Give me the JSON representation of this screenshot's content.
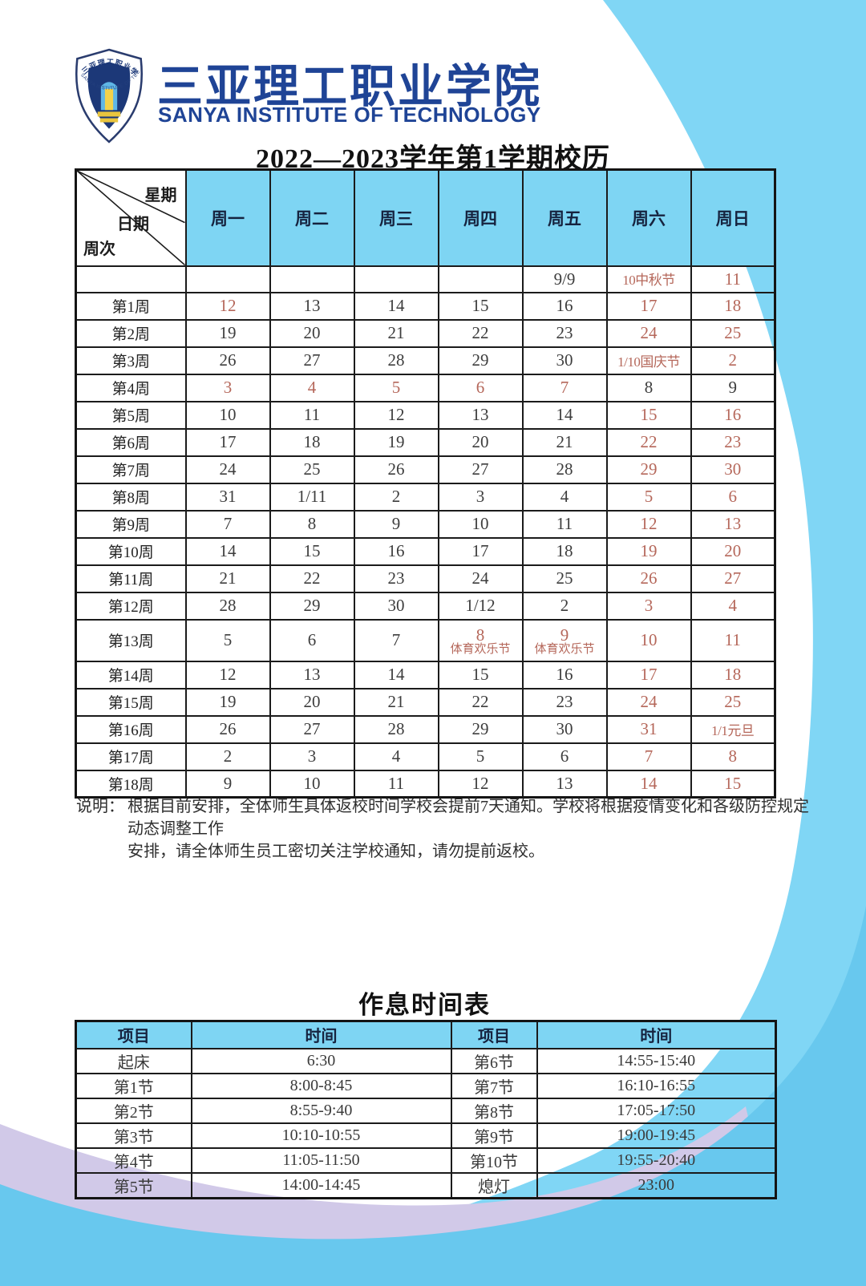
{
  "header": {
    "school_name_zh": "三亚理工职业学院",
    "school_name_en": "SANYA INSTITUTE OF TECHNOLOGY",
    "calendar_title": "2022—2023学年第1学期校历"
  },
  "calendar": {
    "corner": {
      "week_day_label": "星期",
      "date_label": "日期",
      "week_no_label": "周次"
    },
    "day_headers": [
      "周一",
      "周二",
      "周三",
      "周四",
      "周五",
      "周六",
      "周日"
    ],
    "rows": [
      {
        "week": "",
        "blank": true,
        "cells": [
          {
            "t": ""
          },
          {
            "t": ""
          },
          {
            "t": ""
          },
          {
            "t": ""
          },
          {
            "t": "9/9"
          },
          {
            "t": "10中秋节",
            "red": true
          },
          {
            "t": "11",
            "red": true
          }
        ]
      },
      {
        "week": "第1周",
        "cells": [
          {
            "t": "12",
            "red": true
          },
          {
            "t": "13"
          },
          {
            "t": "14"
          },
          {
            "t": "15"
          },
          {
            "t": "16"
          },
          {
            "t": "17",
            "red": true
          },
          {
            "t": "18",
            "red": true
          }
        ]
      },
      {
        "week": "第2周",
        "cells": [
          {
            "t": "19"
          },
          {
            "t": "20"
          },
          {
            "t": "21"
          },
          {
            "t": "22"
          },
          {
            "t": "23"
          },
          {
            "t": "24",
            "red": true
          },
          {
            "t": "25",
            "red": true
          }
        ]
      },
      {
        "week": "第3周",
        "cells": [
          {
            "t": "26"
          },
          {
            "t": "27"
          },
          {
            "t": "28"
          },
          {
            "t": "29"
          },
          {
            "t": "30"
          },
          {
            "t": "1/10国庆节",
            "red": true
          },
          {
            "t": "2",
            "red": true
          }
        ]
      },
      {
        "week": "第4周",
        "cells": [
          {
            "t": "3",
            "red": true
          },
          {
            "t": "4",
            "red": true
          },
          {
            "t": "5",
            "red": true
          },
          {
            "t": "6",
            "red": true
          },
          {
            "t": "7",
            "red": true
          },
          {
            "t": "8"
          },
          {
            "t": "9"
          }
        ]
      },
      {
        "week": "第5周",
        "cells": [
          {
            "t": "10"
          },
          {
            "t": "11"
          },
          {
            "t": "12"
          },
          {
            "t": "13"
          },
          {
            "t": "14"
          },
          {
            "t": "15",
            "red": true
          },
          {
            "t": "16",
            "red": true
          }
        ]
      },
      {
        "week": "第6周",
        "cells": [
          {
            "t": "17"
          },
          {
            "t": "18"
          },
          {
            "t": "19"
          },
          {
            "t": "20"
          },
          {
            "t": "21"
          },
          {
            "t": "22",
            "red": true
          },
          {
            "t": "23",
            "red": true
          }
        ]
      },
      {
        "week": "第7周",
        "cells": [
          {
            "t": "24"
          },
          {
            "t": "25"
          },
          {
            "t": "26"
          },
          {
            "t": "27"
          },
          {
            "t": "28"
          },
          {
            "t": "29",
            "red": true
          },
          {
            "t": "30",
            "red": true
          }
        ]
      },
      {
        "week": "第8周",
        "cells": [
          {
            "t": "31"
          },
          {
            "t": "1/11"
          },
          {
            "t": "2"
          },
          {
            "t": "3"
          },
          {
            "t": "4"
          },
          {
            "t": "5",
            "red": true
          },
          {
            "t": "6",
            "red": true
          }
        ]
      },
      {
        "week": "第9周",
        "cells": [
          {
            "t": "7"
          },
          {
            "t": "8"
          },
          {
            "t": "9"
          },
          {
            "t": "10"
          },
          {
            "t": "11"
          },
          {
            "t": "12",
            "red": true
          },
          {
            "t": "13",
            "red": true
          }
        ]
      },
      {
        "week": "第10周",
        "cells": [
          {
            "t": "14"
          },
          {
            "t": "15"
          },
          {
            "t": "16"
          },
          {
            "t": "17"
          },
          {
            "t": "18"
          },
          {
            "t": "19",
            "red": true
          },
          {
            "t": "20",
            "red": true
          }
        ]
      },
      {
        "week": "第11周",
        "cells": [
          {
            "t": "21"
          },
          {
            "t": "22"
          },
          {
            "t": "23"
          },
          {
            "t": "24"
          },
          {
            "t": "25"
          },
          {
            "t": "26",
            "red": true
          },
          {
            "t": "27",
            "red": true
          }
        ]
      },
      {
        "week": "第12周",
        "cells": [
          {
            "t": "28"
          },
          {
            "t": "29"
          },
          {
            "t": "30"
          },
          {
            "t": "1/12"
          },
          {
            "t": "2"
          },
          {
            "t": "3",
            "red": true
          },
          {
            "t": "4",
            "red": true
          }
        ]
      },
      {
        "week": "第13周",
        "tall": true,
        "cells": [
          {
            "t": "5"
          },
          {
            "t": "6"
          },
          {
            "t": "7"
          },
          {
            "t": "8",
            "sub": "体育欢乐节",
            "red": true
          },
          {
            "t": "9",
            "sub": "体育欢乐节",
            "red": true
          },
          {
            "t": "10",
            "red": true
          },
          {
            "t": "11",
            "red": true
          }
        ]
      },
      {
        "week": "第14周",
        "cells": [
          {
            "t": "12"
          },
          {
            "t": "13"
          },
          {
            "t": "14"
          },
          {
            "t": "15"
          },
          {
            "t": "16"
          },
          {
            "t": "17",
            "red": true
          },
          {
            "t": "18",
            "red": true
          }
        ]
      },
      {
        "week": "第15周",
        "cells": [
          {
            "t": "19"
          },
          {
            "t": "20"
          },
          {
            "t": "21"
          },
          {
            "t": "22"
          },
          {
            "t": "23"
          },
          {
            "t": "24",
            "red": true
          },
          {
            "t": "25",
            "red": true
          }
        ]
      },
      {
        "week": "第16周",
        "cells": [
          {
            "t": "26"
          },
          {
            "t": "27"
          },
          {
            "t": "28"
          },
          {
            "t": "29"
          },
          {
            "t": "30"
          },
          {
            "t": "31",
            "red": true
          },
          {
            "t": "1/1元旦",
            "red": true
          }
        ]
      },
      {
        "week": "第17周",
        "cells": [
          {
            "t": "2"
          },
          {
            "t": "3"
          },
          {
            "t": "4"
          },
          {
            "t": "5"
          },
          {
            "t": "6"
          },
          {
            "t": "7",
            "red": true
          },
          {
            "t": "8",
            "red": true
          }
        ]
      },
      {
        "week": "第18周",
        "cells": [
          {
            "t": "9"
          },
          {
            "t": "10"
          },
          {
            "t": "11"
          },
          {
            "t": "12"
          },
          {
            "t": "13"
          },
          {
            "t": "14",
            "red": true
          },
          {
            "t": "15",
            "red": true
          }
        ]
      }
    ]
  },
  "note": {
    "label": "说明：",
    "line1": "根据目前安排，全体师生具体返校时间学校会提前7天通知。学校将根据疫情变化和各级防控规定动态调整工作",
    "line2": "安排，请全体师生员工密切关注学校通知，请勿提前返校。"
  },
  "schedule": {
    "title": "作息时间表",
    "headers": [
      "项目",
      "时间",
      "项目",
      "时间"
    ],
    "rows": [
      [
        "起床",
        "6:30",
        "第6节",
        "14:55-15:40"
      ],
      [
        "第1节",
        "8:00-8:45",
        "第7节",
        "16:10-16:55"
      ],
      [
        "第2节",
        "8:55-9:40",
        "第8节",
        "17:05-17:50"
      ],
      [
        "第3节",
        "10:10-10:55",
        "第9节",
        "19:00-19:45"
      ],
      [
        "第4节",
        "11:05-11:50",
        "第10节",
        "19:55-20:40"
      ],
      [
        "第5节",
        "14:00-14:45",
        "熄灯",
        "23:00"
      ]
    ]
  },
  "colors": {
    "header_blue": "#7ed5f3",
    "holiday_red": "#b5675a",
    "school_navy": "#1f4496",
    "decor_blue_right": "#80d6f5",
    "decor_lavender": "#d1c9e8",
    "decor_cyan_bottom": "#68c8ee"
  }
}
